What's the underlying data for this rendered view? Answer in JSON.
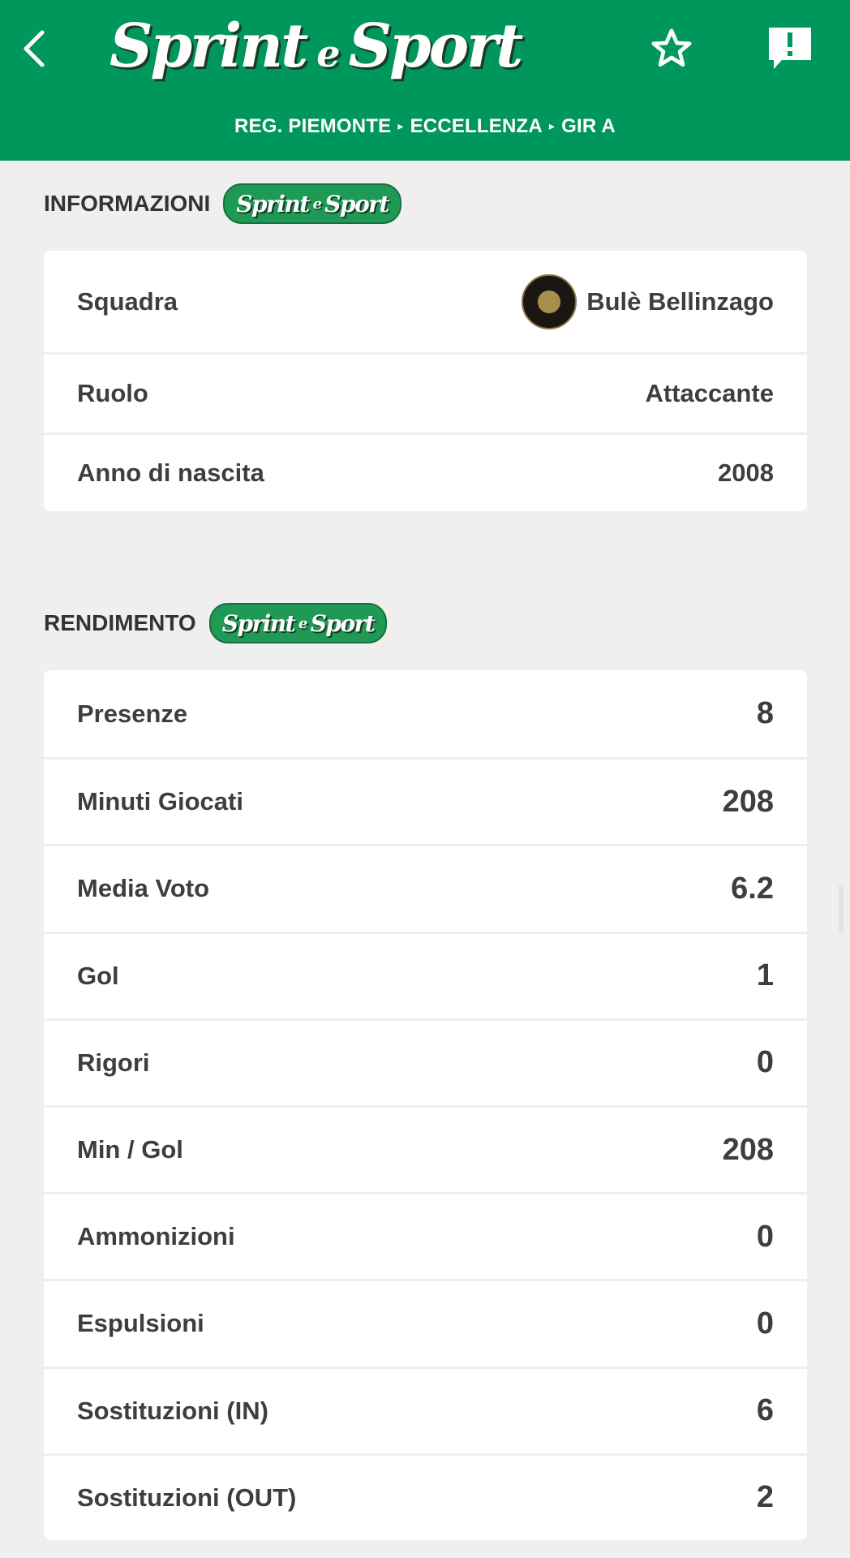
{
  "header": {
    "logo_text": "Sprint e Sport",
    "breadcrumb": [
      "REG. PIEMONTE",
      "ECCELLENZA",
      "GIR A"
    ],
    "breadcrumb_separator": "▸",
    "icons": [
      "back-arrow-icon",
      "star-icon",
      "report-icon"
    ],
    "color": "#00975c"
  },
  "informazioni": {
    "title": "INFORMAZIONI",
    "badge": "Sprint e Sport",
    "rows": [
      {
        "label": "Squadra",
        "value": "Bulè Bellinzago"
      },
      {
        "label": "Ruolo",
        "value": "Attaccante"
      },
      {
        "label": "Anno di nascita",
        "value": "2008"
      }
    ]
  },
  "rendimento": {
    "title": "RENDIMENTO",
    "badge": "Sprint e Sport",
    "rows": [
      {
        "label": "Presenze",
        "value": "8"
      },
      {
        "label": "Minuti Giocati",
        "value": "208"
      },
      {
        "label": "Media Voto",
        "value": "6.2"
      },
      {
        "label": "Gol",
        "value": "1"
      },
      {
        "label": "Rigori",
        "value": "0"
      },
      {
        "label": "Min / Gol",
        "value": "208"
      },
      {
        "label": "Ammonizioni",
        "value": "0"
      },
      {
        "label": "Espulsioni",
        "value": "0"
      },
      {
        "label": "Sostituzioni (IN)",
        "value": "6"
      },
      {
        "label": "Sostituzioni (OUT)",
        "value": "2"
      }
    ]
  }
}
